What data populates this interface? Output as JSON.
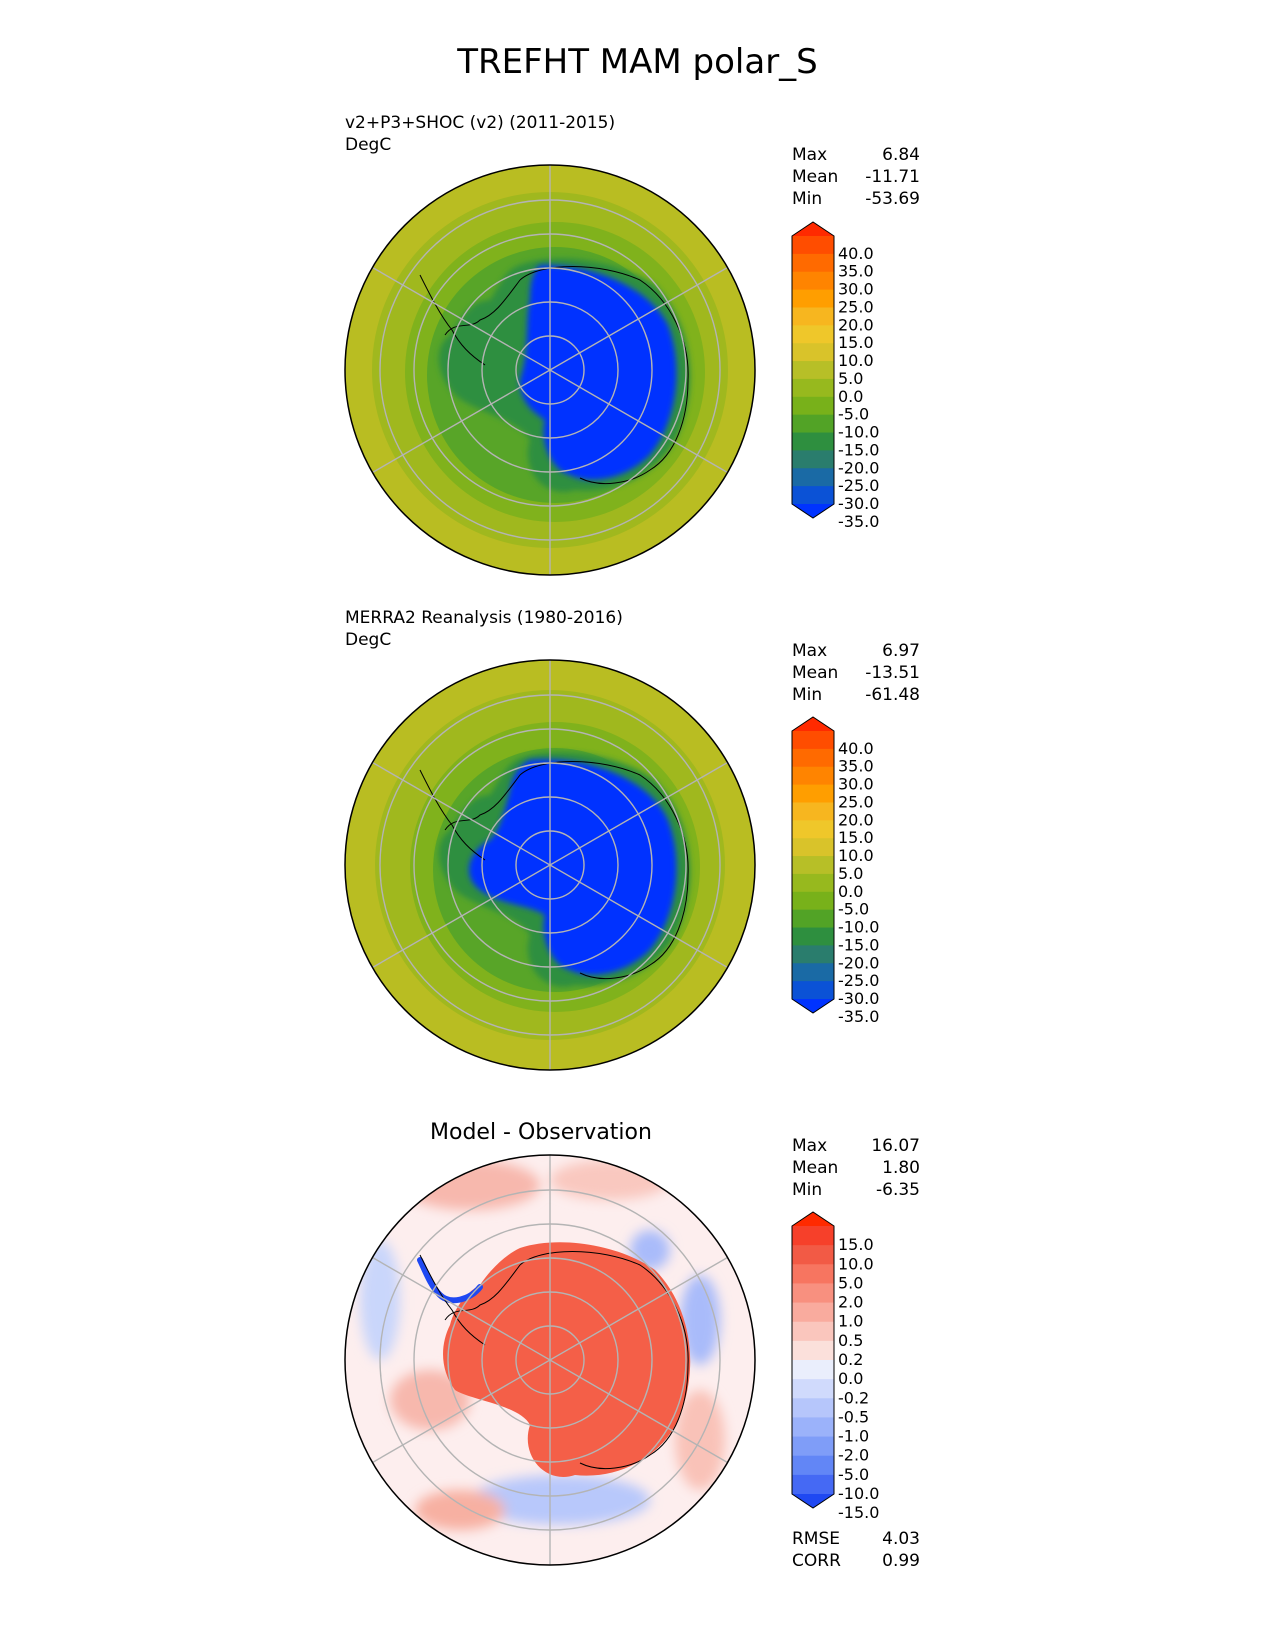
{
  "figure_title": "TREFHT MAM polar_S",
  "panels": [
    {
      "id": "test",
      "title_lines": [
        "v2+P3+SHOC (v2) (2011-2015)",
        "DegC"
      ],
      "stats": [
        {
          "label": "Max",
          "value": "6.84"
        },
        {
          "label": "Mean",
          "value": "-11.71"
        },
        {
          "label": "Min",
          "value": "-53.69"
        }
      ],
      "colorbar": {
        "ticks": [
          "40.0",
          "35.0",
          "30.0",
          "25.0",
          "20.0",
          "15.0",
          "10.0",
          "5.0",
          "0.0",
          "-5.0",
          "-10.0",
          "-15.0",
          "-20.0",
          "-25.0",
          "-30.0",
          "-35.0"
        ],
        "colors": [
          "#ff2a00",
          "#ff4d00",
          "#ff6a00",
          "#ff8400",
          "#ff9e00",
          "#f7b61f",
          "#efc72a",
          "#d9c32a",
          "#b7bf27",
          "#97b91e",
          "#78b11a",
          "#52a326",
          "#2e8f3f",
          "#2a7d6d",
          "#1a6aa5",
          "#0b52d6",
          "#0033ff"
        ]
      }
    },
    {
      "id": "ref",
      "title_lines": [
        "MERRA2 Reanalysis (1980-2016)",
        "DegC"
      ],
      "stats": [
        {
          "label": "Max",
          "value": "6.97"
        },
        {
          "label": "Mean",
          "value": "-13.51"
        },
        {
          "label": "Min",
          "value": "-61.48"
        }
      ],
      "colorbar": {
        "ticks": [
          "40.0",
          "35.0",
          "30.0",
          "25.0",
          "20.0",
          "15.0",
          "10.0",
          "5.0",
          "0.0",
          "-5.0",
          "-10.0",
          "-15.0",
          "-20.0",
          "-25.0",
          "-30.0",
          "-35.0"
        ],
        "colors": [
          "#ff2a00",
          "#ff4d00",
          "#ff6a00",
          "#ff8400",
          "#ff9e00",
          "#f7b61f",
          "#efc72a",
          "#d9c32a",
          "#b7bf27",
          "#97b91e",
          "#78b11a",
          "#52a326",
          "#2e8f3f",
          "#2a7d6d",
          "#1a6aa5",
          "#0b52d6",
          "#0033ff"
        ]
      }
    },
    {
      "id": "diff",
      "title_lines": [
        "Model - Observation"
      ],
      "stats": [
        {
          "label": "Max",
          "value": "16.07"
        },
        {
          "label": "Mean",
          "value": "1.80"
        },
        {
          "label": "Min",
          "value": "-6.35"
        }
      ],
      "extra_stats": [
        {
          "label": "RMSE",
          "value": "4.03"
        },
        {
          "label": "CORR",
          "value": "0.99"
        }
      ],
      "colorbar": {
        "ticks": [
          "15.0",
          "10.0",
          "5.0",
          "2.0",
          "1.0",
          "0.5",
          "0.2",
          "0.0",
          "-0.2",
          "-0.5",
          "-1.0",
          "-2.0",
          "-5.0",
          "-10.0",
          "-15.0"
        ],
        "colors": [
          "#ff2a00",
          "#f6402a",
          "#f25a45",
          "#f77560",
          "#f8907f",
          "#f9ab9e",
          "#fac6bd",
          "#fbe0db",
          "#eaeefc",
          "#d0dafc",
          "#b6c6fb",
          "#9bb2fa",
          "#7f9df8",
          "#6286f6",
          "#4569f4",
          "#1f48f2"
        ]
      }
    }
  ]
}
